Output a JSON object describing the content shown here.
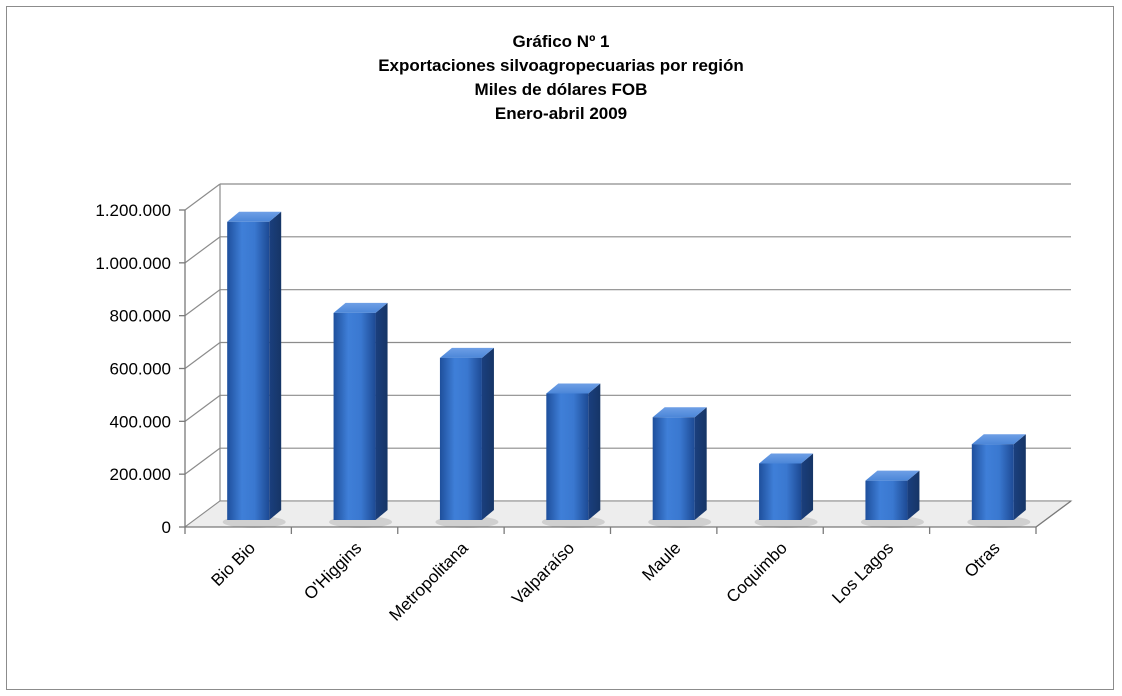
{
  "chart_data": {
    "type": "bar",
    "title_lines": [
      "Gráfico Nº 1",
      "Exportaciones silvoagropecuarias por región",
      "Miles de dólares FOB",
      "Enero-abril 2009"
    ],
    "categories": [
      "Bio Bio",
      "O'Higgins",
      "Metropolitana",
      "Valparaíso",
      "Maule",
      "Coquimbo",
      "Los Lagos",
      "Otras"
    ],
    "values": [
      1110000,
      765000,
      595000,
      460000,
      370000,
      195000,
      130000,
      268000
    ],
    "ylim": [
      0,
      1200000
    ],
    "yticks": [
      0,
      200000,
      400000,
      600000,
      800000,
      1000000,
      1200000
    ],
    "ytick_labels": [
      "0",
      "200.000",
      "400.000",
      "600.000",
      "800.000",
      "1.000.000",
      "1.200.000"
    ],
    "grid": true,
    "legend": "none",
    "bar_color": "#2f6bc4"
  }
}
